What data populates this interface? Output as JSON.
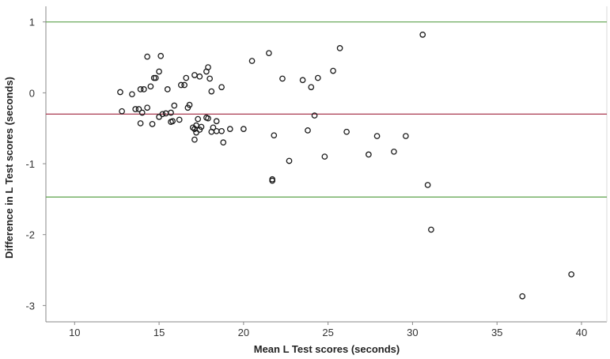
{
  "chart_data": {
    "type": "scatter",
    "title": "",
    "xlabel": "Mean L Test scores (seconds)",
    "ylabel": "Difference in L Test scores (seconds)",
    "xlim": [
      8.3,
      41.5
    ],
    "ylim": [
      -3.23,
      1.22
    ],
    "x_ticks": [
      10,
      15,
      20,
      25,
      30,
      35,
      40
    ],
    "x_tick_labels": [
      "10",
      "15",
      "20",
      "25",
      "30",
      "35",
      "40"
    ],
    "y_ticks": [
      1,
      0,
      -1,
      -2,
      -3
    ],
    "y_tick_labels": [
      "1",
      "0",
      "-1",
      "-2",
      "-3"
    ],
    "grid": false,
    "reference_lines": [
      {
        "name": "upper-limit-of-agreement",
        "value": 1.0,
        "color": "#6aaa5a"
      },
      {
        "name": "mean-difference",
        "value": -0.3,
        "color": "#b0485e"
      },
      {
        "name": "lower-limit-of-agreement",
        "value": -1.47,
        "color": "#6aaa5a"
      }
    ],
    "points": [
      [
        12.7,
        0.01
      ],
      [
        12.8,
        -0.26
      ],
      [
        13.4,
        -0.02
      ],
      [
        13.6,
        -0.23
      ],
      [
        13.8,
        -0.23
      ],
      [
        13.9,
        0.05
      ],
      [
        14.0,
        -0.28
      ],
      [
        13.9,
        -0.43
      ],
      [
        14.1,
        0.05
      ],
      [
        14.3,
        0.51
      ],
      [
        14.3,
        -0.21
      ],
      [
        14.5,
        0.09
      ],
      [
        14.6,
        -0.44
      ],
      [
        14.7,
        0.21
      ],
      [
        14.8,
        0.21
      ],
      [
        15.0,
        0.3
      ],
      [
        15.1,
        0.52
      ],
      [
        15.0,
        -0.34
      ],
      [
        15.2,
        -0.3
      ],
      [
        15.4,
        -0.29
      ],
      [
        15.5,
        0.05
      ],
      [
        15.7,
        -0.28
      ],
      [
        15.7,
        -0.41
      ],
      [
        15.8,
        -0.4
      ],
      [
        15.9,
        -0.18
      ],
      [
        16.2,
        -0.38
      ],
      [
        16.3,
        0.11
      ],
      [
        16.5,
        0.11
      ],
      [
        16.6,
        0.21
      ],
      [
        16.7,
        -0.21
      ],
      [
        16.8,
        -0.17
      ],
      [
        17.1,
        0.25
      ],
      [
        17.0,
        -0.49
      ],
      [
        17.1,
        -0.51
      ],
      [
        17.2,
        -0.56
      ],
      [
        17.1,
        -0.66
      ],
      [
        17.2,
        -0.46
      ],
      [
        17.3,
        -0.37
      ],
      [
        17.4,
        -0.52
      ],
      [
        17.5,
        -0.48
      ],
      [
        17.4,
        0.23
      ],
      [
        17.8,
        0.3
      ],
      [
        17.9,
        0.36
      ],
      [
        17.8,
        -0.35
      ],
      [
        17.9,
        -0.36
      ],
      [
        18.0,
        0.2
      ],
      [
        18.1,
        0.02
      ],
      [
        18.1,
        -0.55
      ],
      [
        18.2,
        -0.49
      ],
      [
        18.4,
        -0.4
      ],
      [
        18.4,
        -0.54
      ],
      [
        18.7,
        0.08
      ],
      [
        18.7,
        -0.54
      ],
      [
        18.8,
        -0.7
      ],
      [
        19.2,
        -0.51
      ],
      [
        20.0,
        -0.51
      ],
      [
        20.5,
        0.45
      ],
      [
        21.5,
        0.56
      ],
      [
        21.8,
        -0.6
      ],
      [
        21.7,
        -1.22
      ],
      [
        21.7,
        -1.24
      ],
      [
        22.3,
        0.2
      ],
      [
        22.7,
        -0.96
      ],
      [
        23.5,
        0.18
      ],
      [
        23.8,
        -0.53
      ],
      [
        24.0,
        0.08
      ],
      [
        24.2,
        -0.32
      ],
      [
        24.4,
        0.21
      ],
      [
        24.8,
        -0.9
      ],
      [
        25.3,
        0.31
      ],
      [
        25.7,
        0.63
      ],
      [
        26.1,
        -0.55
      ],
      [
        27.4,
        -0.87
      ],
      [
        27.9,
        -0.61
      ],
      [
        28.9,
        -0.83
      ],
      [
        29.6,
        -0.61
      ],
      [
        30.6,
        0.82
      ],
      [
        30.9,
        -1.3
      ],
      [
        31.1,
        -1.93
      ],
      [
        36.5,
        -2.87
      ],
      [
        39.4,
        -2.56
      ]
    ]
  }
}
